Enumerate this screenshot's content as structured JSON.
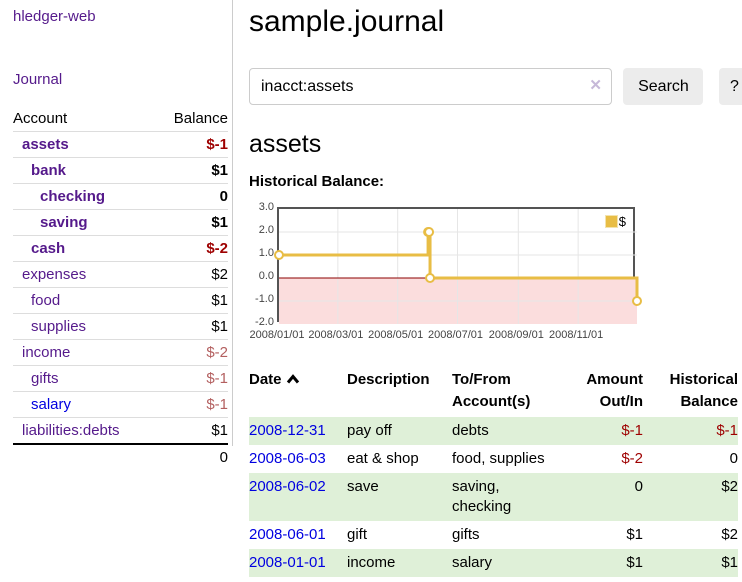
{
  "app": {
    "title": "hledger-web"
  },
  "nav": {
    "journal_label": "Journal"
  },
  "sidebar_accounts": {
    "headers": {
      "account": "Account",
      "balance": "Balance"
    },
    "rows": [
      {
        "account": "assets",
        "balance": "$-1",
        "level": 1,
        "bold": true,
        "account_style": "purple",
        "balance_style": "negative"
      },
      {
        "account": "bank",
        "balance": "$1",
        "level": 2,
        "bold": true,
        "account_style": "purple",
        "balance_style": "normal"
      },
      {
        "account": "checking",
        "balance": "0",
        "level": 3,
        "bold": true,
        "account_style": "purple",
        "balance_style": "normal"
      },
      {
        "account": "saving",
        "balance": "$1",
        "level": 3,
        "bold": true,
        "account_style": "purple",
        "balance_style": "normal"
      },
      {
        "account": "cash",
        "balance": "$-2",
        "level": 2,
        "bold": true,
        "account_style": "purple",
        "balance_style": "negative"
      },
      {
        "account": "expenses",
        "balance": "$2",
        "level": 1,
        "bold": false,
        "account_style": "purple",
        "balance_style": "normal"
      },
      {
        "account": "food",
        "balance": "$1",
        "level": 2,
        "bold": false,
        "account_style": "purple",
        "balance_style": "normal"
      },
      {
        "account": "supplies",
        "balance": "$1",
        "level": 2,
        "bold": false,
        "account_style": "purple",
        "balance_style": "normal"
      },
      {
        "account": "income",
        "balance": "$-2",
        "level": 1,
        "bold": false,
        "account_style": "purple",
        "balance_style": "negative-muted"
      },
      {
        "account": "gifts",
        "balance": "$-1",
        "level": 2,
        "bold": false,
        "account_style": "purple",
        "balance_style": "negative-muted"
      },
      {
        "account": "salary",
        "balance": "$-1",
        "level": 2,
        "bold": false,
        "account_style": "blue",
        "balance_style": "negative-muted"
      },
      {
        "account": "liabilities:debts",
        "balance": "$1",
        "level": 1,
        "bold": false,
        "account_style": "purple",
        "balance_style": "normal"
      }
    ],
    "total": "0"
  },
  "main": {
    "title": "sample.journal",
    "search": {
      "value": "inacct:assets",
      "clear_label": "✕",
      "search_button": "Search",
      "help_button": "?"
    },
    "account_heading": "assets",
    "chart_label": "Historical Balance:"
  },
  "chart_data": {
    "type": "line",
    "title": "Historical Balance",
    "step": true,
    "series": [
      {
        "name": "$",
        "color": "#e8bd45",
        "points": [
          {
            "date": "2008-01-01",
            "day": 0,
            "value": 1
          },
          {
            "date": "2008-06-01",
            "day": 152,
            "value": 2
          },
          {
            "date": "2008-06-02",
            "day": 153,
            "value": 2
          },
          {
            "date": "2008-06-03",
            "day": 154,
            "value": 0
          },
          {
            "date": "2008-12-31",
            "day": 365,
            "value": -1
          }
        ]
      }
    ],
    "xlim": [
      0,
      365
    ],
    "ylim": [
      -2,
      3
    ],
    "yticks": [
      3,
      2,
      1,
      0,
      -1,
      -2
    ],
    "ytick_labels": [
      "3.0",
      "2.0",
      "1.0",
      "0.0",
      "-1.0",
      "-2.0"
    ],
    "xticks": [
      {
        "day": 0,
        "label": "2008/01/01"
      },
      {
        "day": 60,
        "label": "2008/03/01"
      },
      {
        "day": 121,
        "label": "2008/05/01"
      },
      {
        "day": 182,
        "label": "2008/07/01"
      },
      {
        "day": 244,
        "label": "2008/09/01"
      },
      {
        "day": 305,
        "label": "2008/11/01"
      }
    ],
    "grid": true,
    "negative_fill": "#fbdddd",
    "zero_line_color": "#8b0000",
    "legend": {
      "label": "$",
      "position": "top-right"
    }
  },
  "register": {
    "headers": {
      "date": "Date",
      "description": "Description",
      "accounts": "To/From Account(s)",
      "amount": "Amount Out/In",
      "balance": "Historical Balance"
    },
    "sort": "ascending",
    "rows": [
      {
        "date": "2008-12-31",
        "description": "pay off",
        "accounts": "debts",
        "amount": "$-1",
        "balance": "$-1",
        "amount_negative": true,
        "balance_negative": true
      },
      {
        "date": "2008-06-03",
        "description": "eat & shop",
        "accounts": "food, supplies",
        "amount": "$-2",
        "balance": "0",
        "amount_negative": true,
        "balance_negative": false
      },
      {
        "date": "2008-06-02",
        "description": "save",
        "accounts": "saving, checking",
        "amount": "0",
        "balance": "$2",
        "amount_negative": false,
        "balance_negative": false
      },
      {
        "date": "2008-06-01",
        "description": "gift",
        "accounts": "gifts",
        "amount": "$1",
        "balance": "$2",
        "amount_negative": false,
        "balance_negative": false
      },
      {
        "date": "2008-01-01",
        "description": "income",
        "accounts": "salary",
        "amount": "$1",
        "balance": "$1",
        "amount_negative": false,
        "balance_negative": false
      }
    ]
  },
  "colors": {
    "link_purple": "#551a8b",
    "link_blue": "#0000e0",
    "negative_strong": "#9e0000",
    "negative_muted": "#b35f5f",
    "stripe_green": "#dff0d8",
    "chart_line": "#e8bd45",
    "chart_negative_fill": "#fbdddd",
    "chart_zero_line": "#8b0000"
  }
}
